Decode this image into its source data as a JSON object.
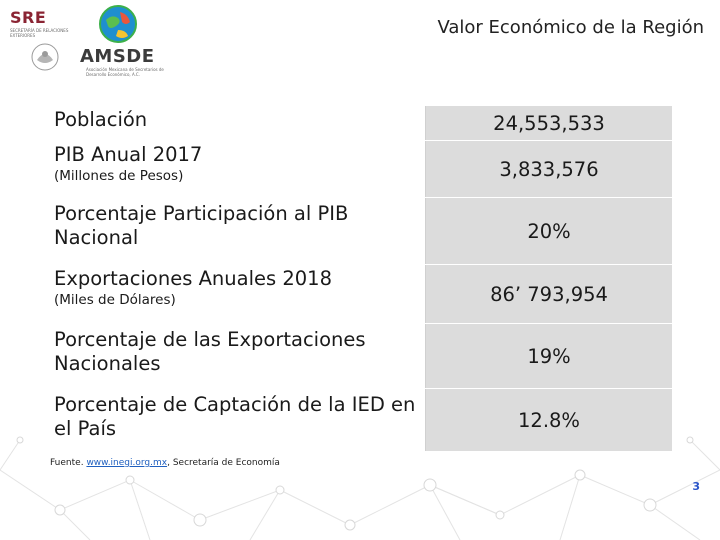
{
  "header": {
    "sre_logo_text": "SRE",
    "sre_subtext": "SECRETARÍA DE RELACIONES EXTERIORES",
    "amsde_logo_text": "AMSDE",
    "amsde_subtext": "Asociación Mexicana de Secretarios de Desarrollo Económico, A.C.",
    "title": "Valor Económico de la Región"
  },
  "table": {
    "rows": [
      {
        "label": "Población",
        "sublabel": "",
        "value": "24,553,533"
      },
      {
        "label": "PIB Anual 2017",
        "sublabel": "(Millones de Pesos)",
        "value": "3,833,576"
      },
      {
        "label": "Porcentaje Participación al PIB Nacional",
        "sublabel": "",
        "value": "20%"
      },
      {
        "label": "Exportaciones Anuales 2018",
        "sublabel": "(Miles de Dólares)",
        "value": "86’ 793,954"
      },
      {
        "label": "Porcentaje de las Exportaciones Nacionales",
        "sublabel": "",
        "value": "19%"
      },
      {
        "label": "Porcentaje de Captación de la IED en el País",
        "sublabel": "",
        "value": "12.8%"
      }
    ]
  },
  "footer": {
    "source_prefix": "Fuente.",
    "source_link": "www.inegi.org.mx",
    "source_suffix": ", Secretaría de Economía",
    "page_number": "3"
  },
  "colors": {
    "value_cell_bg": "#dcdcdc",
    "sre_red": "#8a2433",
    "page_number_blue": "#2a54c8"
  }
}
